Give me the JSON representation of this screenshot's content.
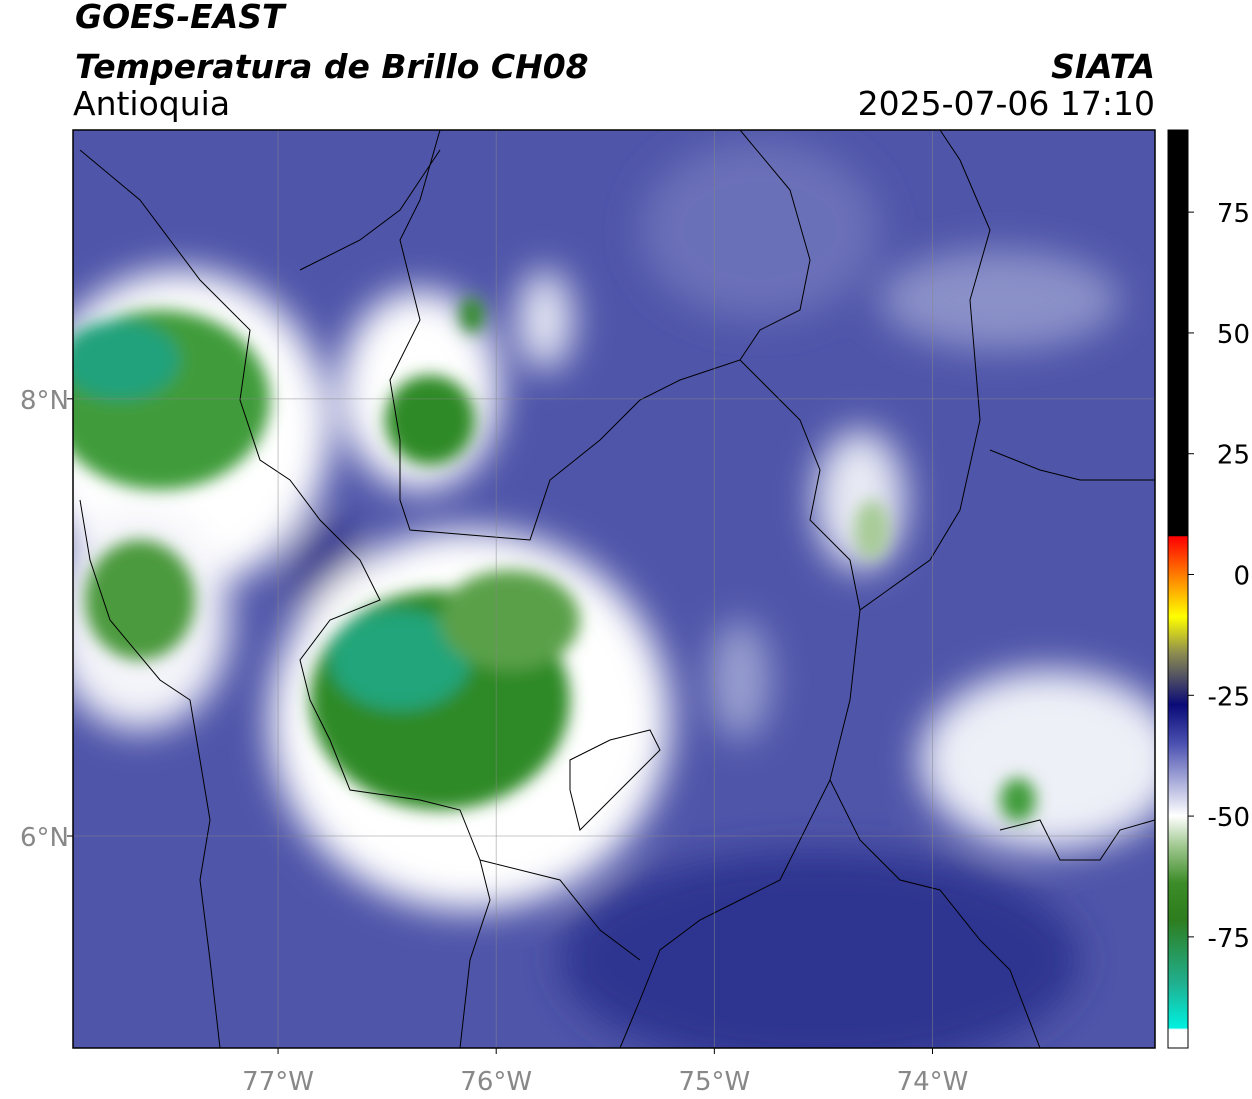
{
  "header": {
    "title": "GOES-EAST",
    "subtitle": "Temperatura de Brillo CH08",
    "region": "Antioquia",
    "source": "SIATA",
    "datetime": "2025-07-06 17:10"
  },
  "map": {
    "xlim": [
      -77.94,
      -72.98
    ],
    "ylim": [
      5.03,
      9.23
    ],
    "xticks": [
      {
        "value": -77,
        "label": "77°W"
      },
      {
        "value": -76,
        "label": "76°W"
      },
      {
        "value": -75,
        "label": "75°W"
      },
      {
        "value": -74,
        "label": "74°W"
      }
    ],
    "yticks": [
      {
        "value": 8,
        "label": "8°N"
      },
      {
        "value": 6,
        "label": "6°N"
      }
    ],
    "grid": true
  },
  "colorbar": {
    "lim": [
      -98,
      92
    ],
    "ticks": [
      75,
      50,
      25,
      0,
      -25,
      -50,
      -75
    ]
  }
}
